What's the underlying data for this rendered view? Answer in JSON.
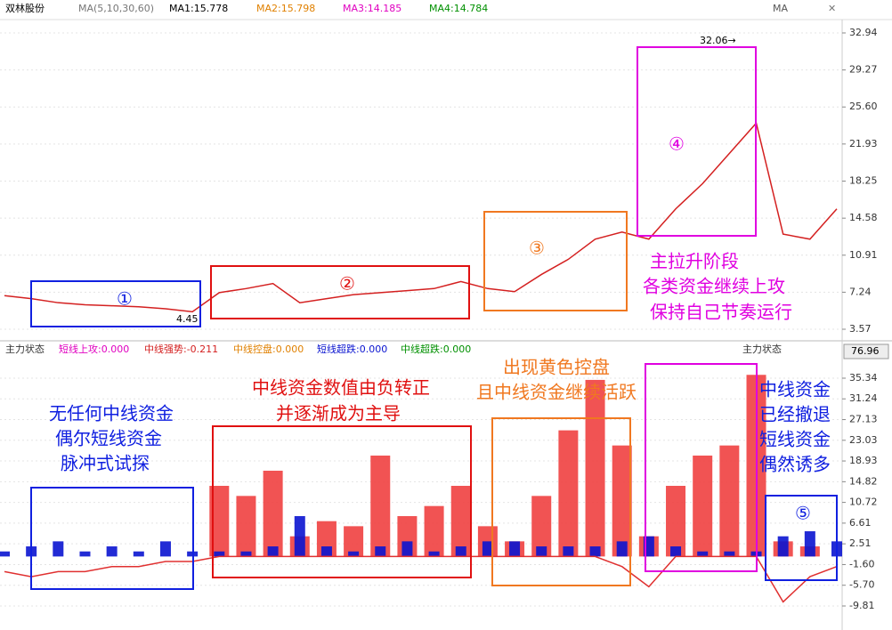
{
  "header": {
    "stock": "双林股份",
    "ma_params": "MA(5,10,30,60)",
    "ma1": "MA1:15.778",
    "ma2": "MA2:15.798",
    "ma3": "MA3:14.185",
    "ma4": "MA4:14.784",
    "ma_button": "MA"
  },
  "indicator_header": {
    "name": "主力状态",
    "l1": "短线上攻:0.000",
    "l2": "中线强势:-0.211",
    "l3": "中线控盘:0.000",
    "l4": "短线超跌:0.000",
    "l5": "中线超跌:0.000",
    "name_right": "主力状态",
    "current": "76.96"
  },
  "chart_data": [
    {
      "type": "line",
      "ylim": [
        3.57,
        32.94
      ],
      "yticks": [
        32.94,
        29.27,
        {
          "value": 25.6,
          "label": "25.60"
        },
        21.93,
        18.25,
        14.58,
        10.91,
        7.24,
        3.57
      ],
      "grid": true,
      "series": [
        {
          "color": "#d42020",
          "values": [
            6.9,
            6.6,
            6.2,
            6.0,
            5.9,
            5.8,
            5.6,
            5.3,
            7.2,
            7.6,
            8.1,
            6.2,
            6.6,
            7.0,
            7.2,
            7.4,
            7.6,
            8.3,
            7.6,
            7.3,
            9.0,
            10.5,
            12.5,
            13.2,
            12.5,
            15.5,
            18.0,
            21.0,
            24.0,
            13.0,
            12.5,
            15.5
          ]
        }
      ],
      "annotations": {
        "high": "32.06→",
        "low": "4.45",
        "c1": "①",
        "c2": "②",
        "c3": "③",
        "c4": "④",
        "t4a": "主拉升阶段",
        "t4b": "各类资金继续上攻",
        "t4c": "保持自己节奏运行"
      }
    },
    {
      "type": "bar",
      "ylim": [
        -9.81,
        35.34
      ],
      "yticks": [
        35.34,
        31.24,
        27.13,
        23.03,
        18.93,
        14.82,
        10.72,
        6.61,
        2.51,
        {
          "value": -1.6,
          "label": "-1.60"
        },
        {
          "value": -5.7,
          "label": "-5.70"
        },
        -9.81
      ],
      "grid": true,
      "series": [
        {
          "color": "#f04040",
          "values": [
            0,
            0,
            0,
            0,
            0,
            0,
            0,
            0,
            14,
            12,
            17,
            4,
            7,
            6,
            20,
            8,
            10,
            14,
            6,
            3,
            12,
            25,
            35,
            22,
            4,
            14,
            20,
            22,
            36,
            3,
            2,
            0
          ]
        },
        {
          "color": "#0a14d0",
          "values": [
            1,
            2,
            3,
            1,
            2,
            1,
            3,
            1,
            1,
            1,
            2,
            8,
            2,
            1,
            2,
            3,
            1,
            2,
            3,
            3,
            2,
            2,
            2,
            3,
            4,
            2,
            1,
            1,
            1,
            4,
            5,
            3
          ]
        },
        {
          "type": "line",
          "color": "#e03030",
          "values": [
            -3,
            -4,
            -3,
            -3,
            -2,
            -2,
            -1,
            -1,
            0,
            0,
            0,
            0,
            0,
            0,
            0,
            0,
            0,
            0,
            0,
            0,
            0,
            0,
            0,
            -2,
            -6,
            0,
            0,
            0,
            0,
            -9,
            -4,
            -2
          ]
        }
      ],
      "annotations": {
        "a1": "无任何中线资金",
        "a2": "偶尔短线资金",
        "a3": "脉冲式试探",
        "b1": "中线资金数值由负转正",
        "b2": "并逐渐成为主导",
        "c1": "出现黄色控盘",
        "c2": "且中线资金继续活跃",
        "d1": "中线资金",
        "d2": "已经撤退",
        "d3": "短线资金",
        "d4": "偶然诱多",
        "c5": "⑤"
      }
    }
  ]
}
